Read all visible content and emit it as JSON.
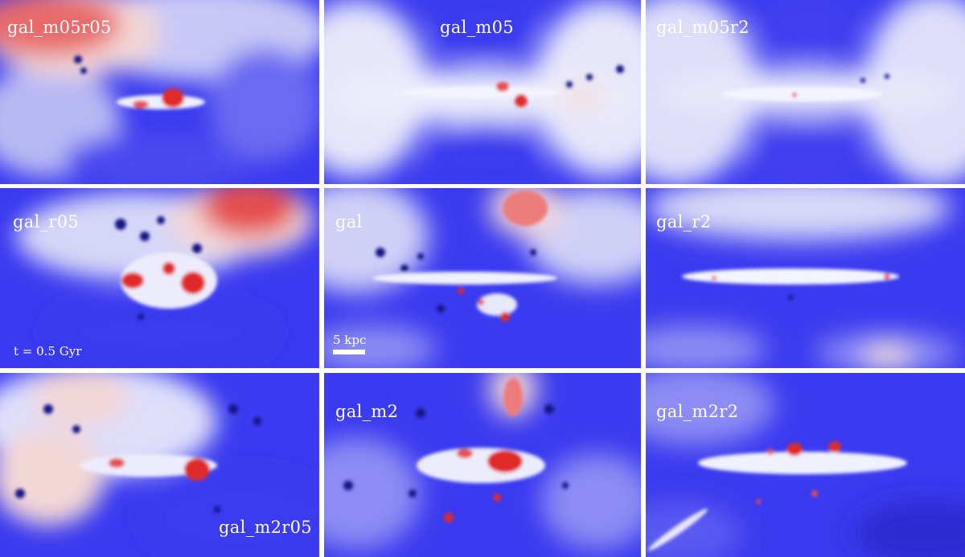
{
  "panels": [
    {
      "label": "gal_m05r05"
    },
    {
      "label": "gal_m05"
    },
    {
      "label": "gal_m05r2"
    },
    {
      "label": "gal_r05"
    },
    {
      "label": "gal"
    },
    {
      "label": "gal_r2"
    },
    {
      "label": "gal_m2r05"
    },
    {
      "label": "gal_m2"
    },
    {
      "label": "gal_m2r2"
    }
  ],
  "time_label": "t = 0.5 Gyr",
  "scale_bar_label": "5 kpc",
  "colors": {
    "background_blue": "#3a3af0",
    "hot_red": "#e23a3a",
    "warm_white": "#f2f2fb",
    "dark_blue": "#161686",
    "separator": "#ffffff"
  }
}
